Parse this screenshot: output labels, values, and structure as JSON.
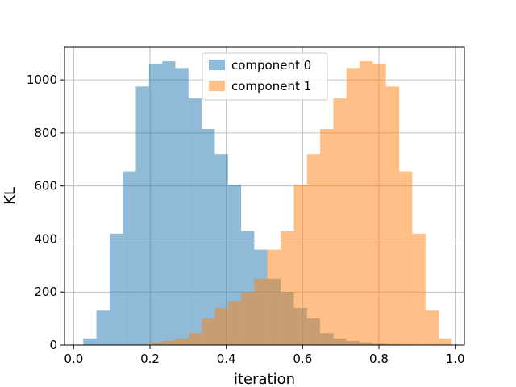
{
  "chart_data": {
    "type": "bar",
    "subtype": "histogram",
    "title": "",
    "xlabel": "iteration",
    "ylabel": "KL",
    "xlim": [
      -0.024,
      1.024
    ],
    "ylim": [
      0,
      1125
    ],
    "xticks": [
      0.0,
      0.2,
      0.4,
      0.6,
      0.8,
      1.0
    ],
    "xtick_labels": [
      "0.0",
      "0.2",
      "0.4",
      "0.6",
      "0.8",
      "1.0"
    ],
    "yticks": [
      0,
      200,
      400,
      600,
      800,
      1000
    ],
    "ytick_labels": [
      "0",
      "200",
      "400",
      "600",
      "800",
      "1000"
    ],
    "grid": true,
    "legend": "upper center",
    "bin_width": 0.0345,
    "series": [
      {
        "name": "component 0",
        "color": "#1f77b4",
        "alpha": 0.5,
        "bin_start": 0.025,
        "values": [
          25,
          130,
          420,
          655,
          975,
          1060,
          1070,
          1045,
          930,
          815,
          720,
          605,
          430,
          360,
          250,
          200,
          140,
          100,
          45,
          25,
          15,
          10,
          5,
          3,
          2,
          1,
          1,
          0
        ]
      },
      {
        "name": "component 1",
        "color": "#ff7f0e",
        "alpha": 0.5,
        "bin_start": 0.025,
        "values": [
          0,
          1,
          1,
          2,
          3,
          10,
          15,
          25,
          45,
          100,
          140,
          165,
          200,
          250,
          360,
          430,
          605,
          720,
          815,
          930,
          1045,
          1070,
          1060,
          975,
          655,
          420,
          130,
          25
        ]
      }
    ]
  }
}
